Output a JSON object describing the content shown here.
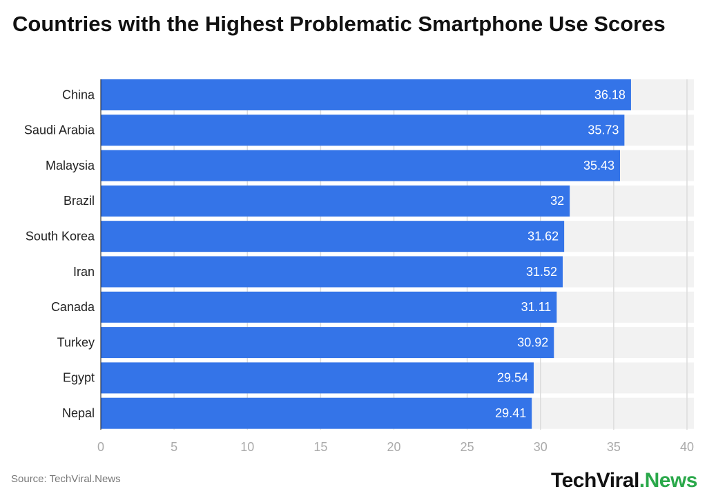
{
  "chart_data": {
    "type": "bar",
    "orientation": "horizontal",
    "title": "Countries with the Highest Problematic Smartphone Use Scores",
    "categories": [
      "China",
      "Saudi Arabia",
      "Malaysia",
      "Brazil",
      "South Korea",
      "Iran",
      "Canada",
      "Turkey",
      "Egypt",
      "Nepal"
    ],
    "values": [
      36.18,
      35.73,
      35.43,
      32,
      31.62,
      31.52,
      31.11,
      30.92,
      29.54,
      29.41
    ],
    "color": "#3474e8",
    "xlim": [
      0,
      40
    ],
    "xticks": [
      0,
      5,
      10,
      15,
      20,
      25,
      30,
      35,
      40
    ],
    "grid": true,
    "source": "Source: TechViral.News",
    "logo": {
      "text": "TechViral",
      "accent": ".News"
    }
  }
}
